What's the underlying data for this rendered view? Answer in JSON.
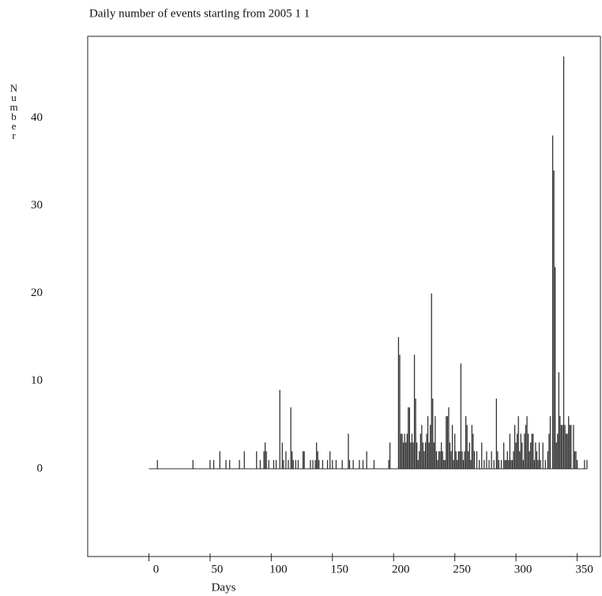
{
  "chart_data": {
    "type": "bar",
    "title": "Daily number of events starting from 2005  1 1",
    "x_label": "Days",
    "y_label": "Number",
    "color": "#333333",
    "xlim": [
      -50,
      369
    ],
    "ylim": [
      -10,
      49.3
    ],
    "xticks": [
      0,
      50,
      100,
      150,
      200,
      250,
      300,
      350
    ],
    "yticks": [
      0,
      10,
      20,
      30,
      40
    ],
    "x": [
      7,
      36,
      50,
      53,
      58,
      63,
      66,
      74,
      78,
      88,
      91,
      94,
      95,
      96,
      98,
      102,
      104,
      107,
      109,
      110,
      112,
      114,
      116,
      117,
      118,
      120,
      122,
      126,
      127,
      132,
      134,
      136,
      137,
      138,
      139,
      142,
      146,
      148,
      150,
      153,
      158,
      163,
      164,
      167,
      172,
      175,
      178,
      184,
      196,
      197,
      204,
      205,
      206,
      207,
      208,
      209,
      210,
      211,
      212,
      213,
      214,
      215,
      216,
      217,
      218,
      219,
      220,
      221,
      222,
      223,
      224,
      225,
      226,
      227,
      228,
      229,
      230,
      231,
      232,
      233,
      234,
      235,
      236,
      237,
      238,
      239,
      240,
      241,
      242,
      243,
      244,
      245,
      246,
      247,
      248,
      249,
      250,
      251,
      252,
      253,
      254,
      255,
      256,
      257,
      258,
      259,
      260,
      261,
      262,
      263,
      264,
      265,
      266,
      268,
      270,
      272,
      274,
      276,
      278,
      280,
      282,
      284,
      285,
      286,
      288,
      290,
      291,
      292,
      293,
      294,
      295,
      296,
      297,
      298,
      299,
      300,
      301,
      302,
      303,
      304,
      305,
      306,
      307,
      308,
      309,
      310,
      311,
      312,
      313,
      314,
      315,
      316,
      317,
      318,
      319,
      320,
      322,
      324,
      326,
      327,
      328,
      330,
      331,
      332,
      333,
      334,
      335,
      336,
      337,
      338,
      339,
      340,
      341,
      342,
      343,
      344,
      345,
      347,
      348,
      349,
      350,
      356,
      358
    ],
    "values": [
      1,
      1,
      1,
      1,
      2,
      1,
      1,
      1,
      2,
      2,
      1,
      2,
      3,
      2,
      1,
      1,
      1,
      9,
      3,
      1,
      2,
      1,
      7,
      2,
      1,
      1,
      1,
      2,
      2,
      1,
      1,
      1,
      3,
      2,
      1,
      1,
      1,
      2,
      1,
      1,
      1,
      4,
      1,
      1,
      1,
      1,
      2,
      1,
      1,
      3,
      15,
      13,
      4,
      4,
      3,
      4,
      3,
      4,
      7,
      7,
      3,
      4,
      3,
      13,
      8,
      3,
      1,
      2,
      4,
      5,
      3,
      2,
      3,
      4,
      6,
      3,
      5,
      20,
      8,
      3,
      6,
      2,
      1,
      2,
      2,
      3,
      2,
      1,
      1,
      6,
      6,
      7,
      3,
      2,
      5,
      1,
      4,
      2,
      1,
      2,
      2,
      12,
      2,
      1,
      2,
      6,
      5,
      2,
      3,
      1,
      5,
      4,
      2,
      2,
      1,
      3,
      1,
      2,
      1,
      2,
      1,
      8,
      2,
      1,
      1,
      3,
      1,
      1,
      2,
      1,
      4,
      1,
      1,
      2,
      5,
      3,
      4,
      6,
      2,
      4,
      3,
      1,
      4,
      5,
      6,
      4,
      2,
      3,
      4,
      4,
      1,
      3,
      2,
      1,
      3,
      1,
      3,
      1,
      2,
      4,
      6,
      38,
      34,
      23,
      3,
      4,
      11,
      6,
      5,
      5,
      47,
      5,
      4,
      4,
      6,
      5,
      5,
      5,
      2,
      2,
      1,
      1,
      1
    ]
  }
}
